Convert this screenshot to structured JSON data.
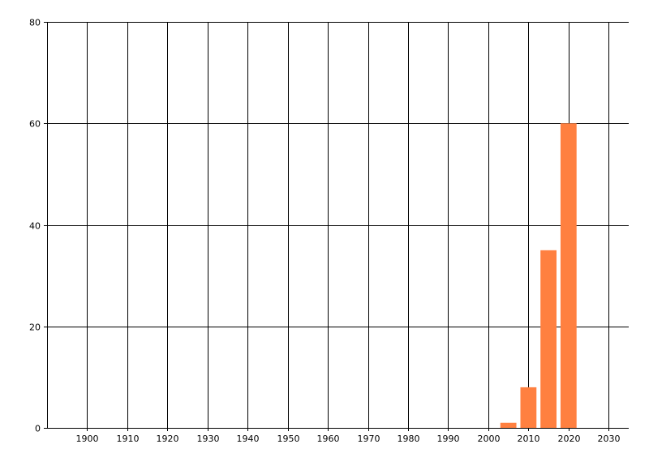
{
  "chart_data": {
    "type": "bar",
    "title": "",
    "xlabel": "",
    "ylabel": "",
    "xlim": [
      1890,
      2035
    ],
    "ylim": [
      0,
      80
    ],
    "x_ticks": [
      1900,
      1910,
      1920,
      1930,
      1940,
      1950,
      1960,
      1970,
      1980,
      1990,
      2000,
      2010,
      2020,
      2030
    ],
    "y_ticks": [
      0,
      20,
      40,
      60,
      80
    ],
    "grid": true,
    "bar_width_years": 4,
    "bar_color": "#FF8040",
    "x": [
      2005,
      2010,
      2015,
      2020
    ],
    "values": [
      1,
      8,
      35,
      60
    ]
  }
}
